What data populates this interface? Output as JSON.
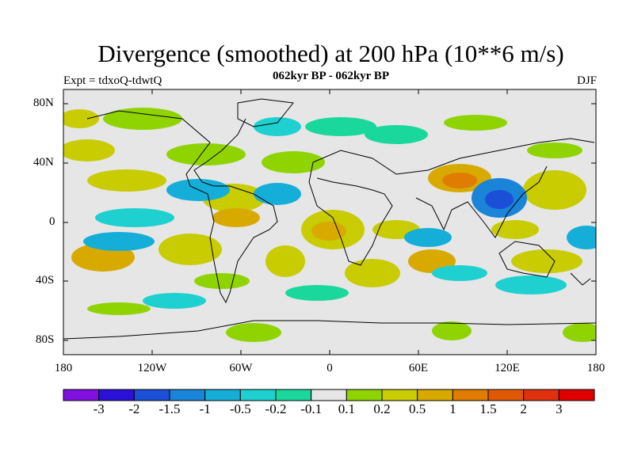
{
  "title": "Divergence (smoothed) at 200 hPa (10**6 m/s)",
  "subtitle": "062kyr BP - 062kyr BP",
  "left_label": "Expt = tdxoQ-tdwtQ",
  "right_label": "DJF",
  "map": {
    "projection": "cylindrical-equidistant",
    "background_color": "#e6e6e6",
    "lon_ticks": [
      "180",
      "120W",
      "60W",
      "0",
      "60E",
      "120E",
      "180"
    ],
    "lat_ticks": [
      "80N",
      "40N",
      "0",
      "40S",
      "80S"
    ]
  },
  "colorbar": {
    "colors": [
      "#7f10e0",
      "#2b10d8",
      "#1b4fd8",
      "#1a84d8",
      "#15aed8",
      "#1ed0d0",
      "#1ad89c",
      "#e6e6e6",
      "#8fd400",
      "#c8cc00",
      "#d8aa00",
      "#e07c00",
      "#e05800",
      "#e0300e",
      "#e00000"
    ],
    "labels": [
      "-3",
      "-2",
      "-1.5",
      "-1",
      "-0.5",
      "-0.2",
      "-0.1",
      "0.1",
      "0.2",
      "0.5",
      "1",
      "1.5",
      "2",
      "3"
    ]
  }
}
